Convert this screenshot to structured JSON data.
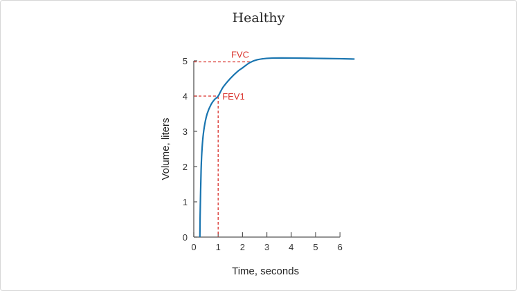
{
  "chart_data": {
    "type": "line",
    "title": "Healthy",
    "xlabel": "Time, seconds",
    "ylabel": "Volume, liters",
    "xlim": [
      0,
      6.7
    ],
    "ylim": [
      0,
      5.2
    ],
    "xticks": [
      "0",
      "1",
      "2",
      "3",
      "4",
      "5",
      "6"
    ],
    "yticks": [
      "0",
      "1",
      "2",
      "3",
      "4",
      "5"
    ],
    "grid": false,
    "series": [
      {
        "color": "#1a75b0",
        "x": [
          0.25,
          0.26,
          0.28,
          0.3,
          0.33,
          0.38,
          0.45,
          0.55,
          0.7,
          0.85,
          1.0,
          1.2,
          1.5,
          1.8,
          2.0,
          2.3,
          2.6,
          3.0,
          3.3,
          4.0,
          5.0,
          6.0,
          6.6
        ],
        "y": [
          0,
          0.6,
          1.3,
          1.9,
          2.4,
          2.85,
          3.2,
          3.5,
          3.75,
          3.9,
          4.0,
          4.25,
          4.5,
          4.7,
          4.8,
          4.95,
          5.03,
          5.07,
          5.08,
          5.08,
          5.07,
          5.06,
          5.05
        ]
      }
    ],
    "annotations": [
      {
        "label": "FVC",
        "x": 2.3,
        "y": 4.97,
        "color": "#d9302a"
      },
      {
        "label": "FEV1",
        "x": 1.0,
        "y": 4.0,
        "color": "#d9302a"
      }
    ]
  }
}
